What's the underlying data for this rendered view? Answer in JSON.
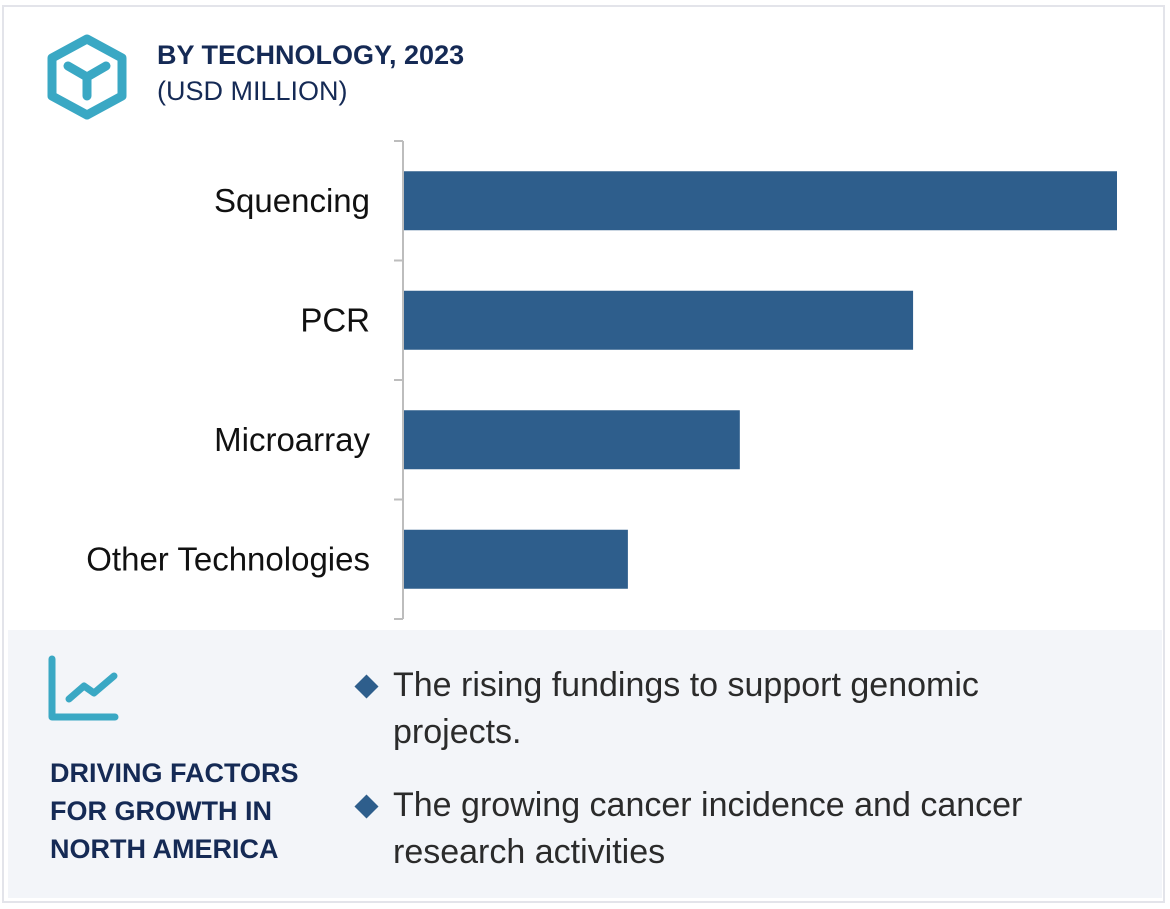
{
  "header": {
    "title": "BY TECHNOLOGY, 2023",
    "subtitle": "(USD MILLION)",
    "logo_icon": "hexagon-y-icon"
  },
  "chart_data": {
    "type": "bar",
    "orientation": "horizontal",
    "title": "BY TECHNOLOGY, 2023",
    "ylabel": "(USD MILLION)",
    "categories": [
      "Squencing",
      "PCR",
      "Microarray",
      "Other Technologies"
    ],
    "values": [
      100,
      71.4,
      47.1,
      31.4
    ],
    "value_note_scale": "relative",
    "grid": false,
    "color": "#2e5e8c"
  },
  "factors": {
    "icon": "line-chart-icon",
    "heading": "DRIVING FACTORS FOR GROWTH IN NORTH AMERICA",
    "items": [
      "The rising fundings to support genomic projects.",
      "The growing cancer incidence and cancer research activities"
    ]
  },
  "colors": {
    "accent": "#3aa8c4",
    "navy": "#152a55",
    "bar": "#2e5e8c",
    "panel": "#f3f5f9"
  }
}
